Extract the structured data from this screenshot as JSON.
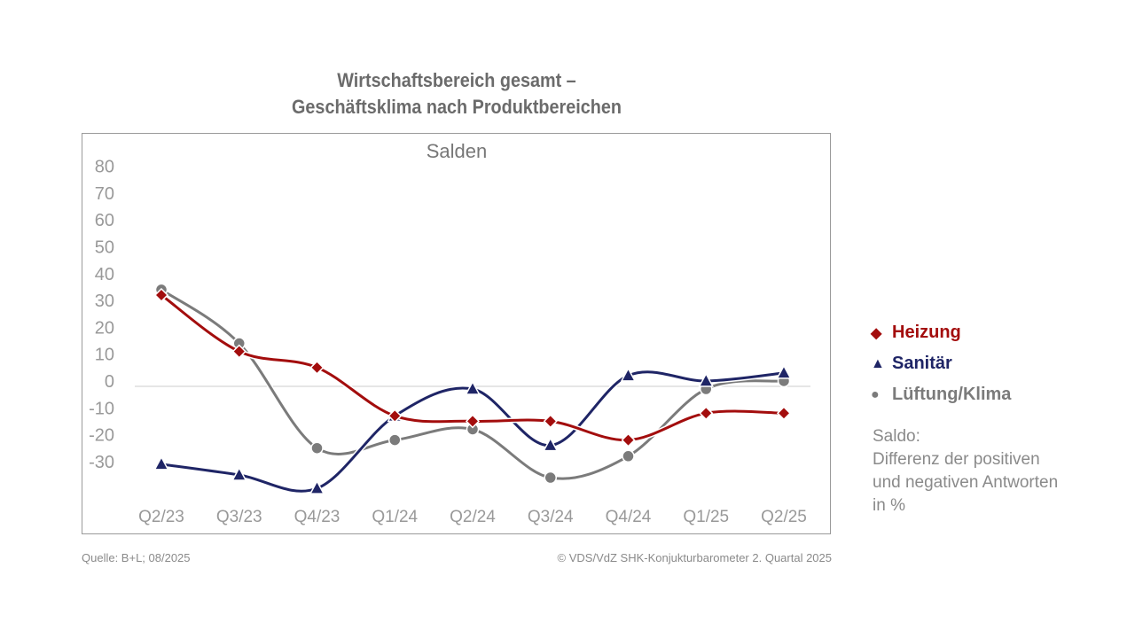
{
  "title_line1": "Wirtschaftsbereich gesamt –",
  "title_line2": "Geschäftsklima nach Produktbereichen",
  "chart_data": {
    "type": "line",
    "title": "Wirtschaftsbereich gesamt – Geschäftsklima nach Produktbereichen",
    "subtitle": "Salden",
    "categories": [
      "Q2/23",
      "Q3/23",
      "Q4/23",
      "Q1/24",
      "Q2/24",
      "Q3/24",
      "Q4/24",
      "Q1/25",
      "Q2/25"
    ],
    "yticks": [
      80,
      70,
      60,
      50,
      40,
      30,
      20,
      10,
      0,
      -10,
      -20,
      -30
    ],
    "ylim": [
      -40,
      80
    ],
    "grid": false,
    "legend": "right",
    "series": [
      {
        "name": "Heizung",
        "color": "#a30d0d",
        "marker": "diamond",
        "values": [
          34,
          13,
          7,
          -11,
          -13,
          -13,
          -20,
          -10,
          -10
        ]
      },
      {
        "name": "Sanitär",
        "color": "#1f2566",
        "marker": "triangle",
        "values": [
          -29,
          -33,
          -38,
          -11,
          -1,
          -22,
          4,
          2,
          5
        ]
      },
      {
        "name": "Lüftung/Klima",
        "color": "#7b7b7b",
        "marker": "circle",
        "values": [
          36,
          16,
          -23,
          -20,
          -16,
          -34,
          -26,
          -1,
          2
        ]
      }
    ]
  },
  "legend_symbols": {
    "diamond": "◆",
    "triangle": "▲",
    "circle": "●"
  },
  "note": "Saldo:\nDifferenz der positiven\nund negativen Antworten\nin %",
  "source": "Quelle: B+L; 08/2025",
  "copyright": "© VDS/VdZ SHK-Konjukturbarometer 2. Quartal 2025"
}
